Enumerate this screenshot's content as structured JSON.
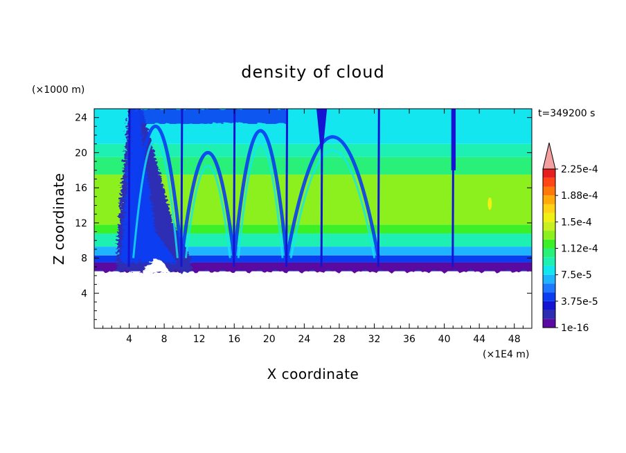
{
  "chart_data": {
    "type": "heatmap",
    "title": "density of cloud",
    "xlabel": "X coordinate",
    "ylabel": "Z coordinate",
    "x_unit": "(×1E4 m)",
    "y_unit": "(×1000 m)",
    "time_label": "t=349200 s",
    "xlim": [
      0,
      50
    ],
    "ylim": [
      0,
      25
    ],
    "x_ticks": [
      4,
      8,
      12,
      16,
      20,
      24,
      28,
      32,
      36,
      40,
      44,
      48
    ],
    "y_ticks": [
      4,
      8,
      12,
      16,
      20,
      24
    ],
    "x_tick_labels": [
      "4",
      "8",
      "12",
      "16",
      "20",
      "24",
      "28",
      "32",
      "36",
      "40",
      "44",
      "48"
    ],
    "y_tick_labels": [
      "4",
      "8",
      "12",
      "16",
      "20",
      "24"
    ],
    "colorbar": {
      "levels": [
        "1e-16",
        "3.75e-5",
        "7.5e-5",
        "1.12e-4",
        "1.5e-4",
        "1.88e-4",
        "2.25e-4"
      ],
      "colors": [
        "#5a0aa0",
        "#2d2db4",
        "#1414d2",
        "#0a3cf0",
        "#1e78ff",
        "#1eb4ff",
        "#14e6f0",
        "#1ef0b4",
        "#28f078",
        "#3cf028",
        "#8cf01e",
        "#c8f01e",
        "#f0f014",
        "#ffd214",
        "#ffaa0a",
        "#ff780a",
        "#ff4614",
        "#e61e1e"
      ],
      "extend_color": "#f4a0a0",
      "extend": "max"
    },
    "field": {
      "background_layers": [
        {
          "z_range": [
            6.5,
            7.5
          ],
          "value_level": 1
        },
        {
          "z_range": [
            7.5,
            8.3
          ],
          "value_level": 3
        },
        {
          "z_range": [
            8.3,
            9.3
          ],
          "value_level": 5
        },
        {
          "z_range": [
            9.3,
            10.8
          ],
          "value_level": 7
        },
        {
          "z_range": [
            10.8,
            11.8
          ],
          "value_level": 9
        },
        {
          "z_range": [
            11.8,
            17.5
          ],
          "value_level": 10
        },
        {
          "z_range": [
            17.5,
            19.5
          ],
          "value_level": 8
        },
        {
          "z_range": [
            19.5,
            21.0
          ],
          "value_level": 7
        },
        {
          "z_range": [
            21.0,
            25.0
          ],
          "value_level": 6
        }
      ],
      "cloud_base_z": 6.5,
      "turbulent_region_x": [
        2.5,
        11.0
      ],
      "plume_columns_x": [
        4,
        10,
        16,
        22,
        26,
        32.5,
        41
      ],
      "local_max": {
        "x": 45.2,
        "z": 14.2,
        "value_level": 12
      }
    }
  }
}
